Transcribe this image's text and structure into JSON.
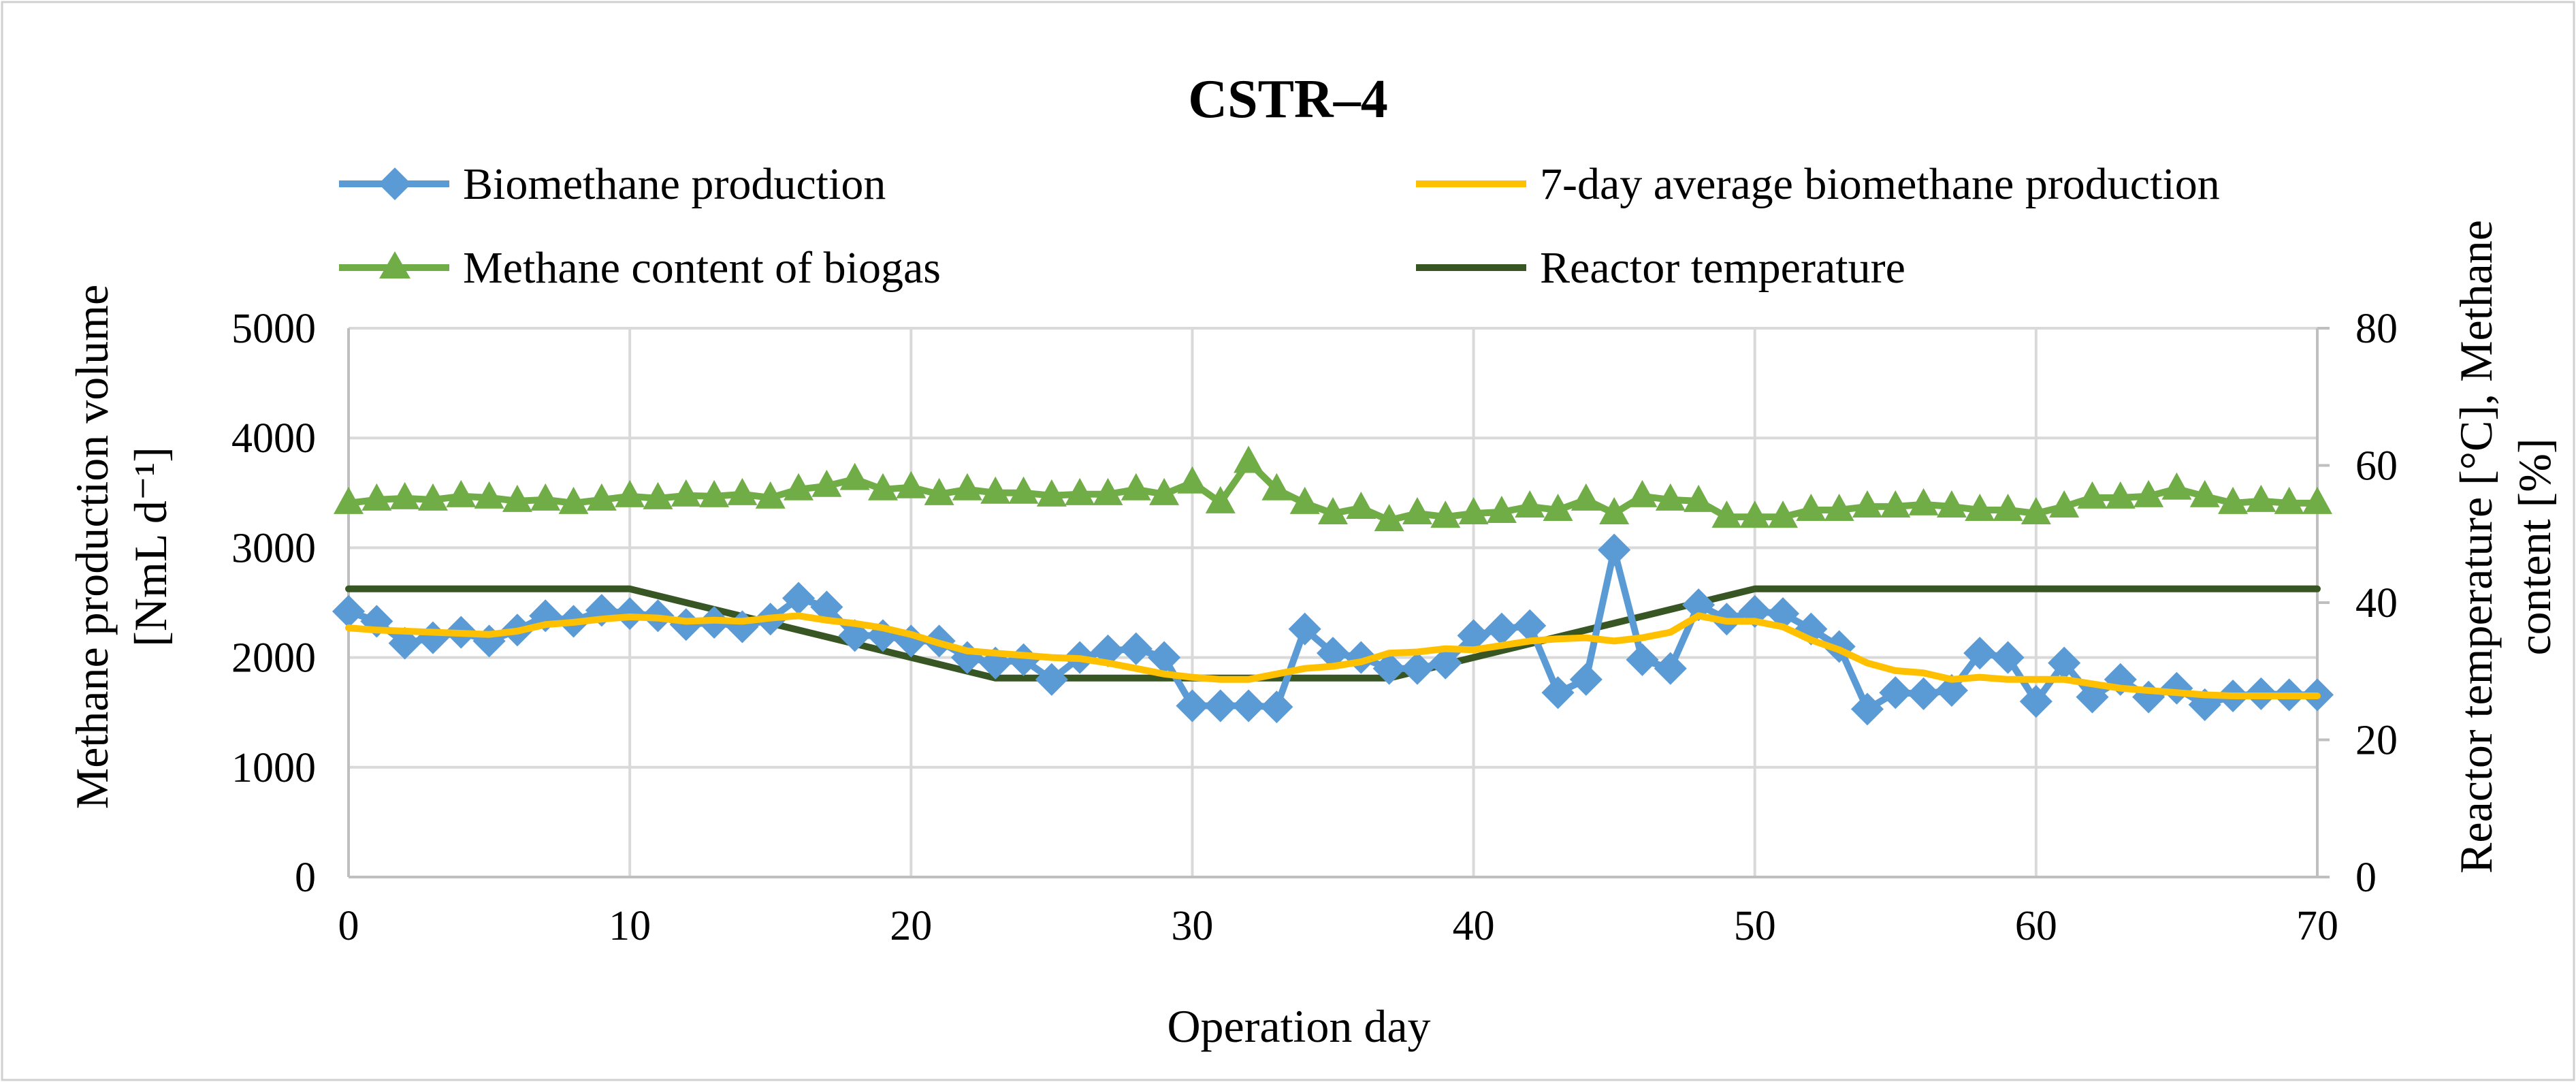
{
  "chart_data": {
    "type": "line",
    "title": "CSTR–4",
    "xlabel": "Operation day",
    "ylabel_left_line1": "Methane production volume",
    "ylabel_left_line2": "[NmL d⁻¹]",
    "ylabel_right_line1": "Reactor temperature [°C],  Methane",
    "ylabel_right_line2": "content [%]",
    "xlim": [
      0,
      70
    ],
    "ylim_left": [
      0,
      5000
    ],
    "ylim_right": [
      0,
      80
    ],
    "x_ticks": [
      "0",
      "10",
      "20",
      "30",
      "40",
      "50",
      "60",
      "70"
    ],
    "y_left_ticks": [
      "0",
      "1000",
      "2000",
      "3000",
      "4000",
      "5000"
    ],
    "y_right_ticks": [
      "0",
      "20",
      "40",
      "60",
      "80"
    ],
    "grid": true,
    "legend_position": "top",
    "series": [
      {
        "name": "Biomethane production",
        "axis": "left",
        "color": "#5b9bd5",
        "marker": "diamond",
        "x": [
          0,
          1,
          2,
          3,
          4,
          5,
          6,
          7,
          8,
          9,
          10,
          11,
          12,
          13,
          14,
          15,
          16,
          17,
          18,
          19,
          20,
          21,
          22,
          23,
          24,
          25,
          26,
          27,
          28,
          29,
          30,
          31,
          32,
          33,
          34,
          35,
          36,
          37,
          38,
          39,
          40,
          41,
          42,
          43,
          44,
          45,
          46,
          47,
          48,
          49,
          50,
          51,
          52,
          53,
          54,
          55,
          56,
          57,
          58,
          59,
          60,
          61,
          62,
          63,
          64,
          65,
          66,
          67,
          68,
          69,
          70
        ],
        "values": [
          2420,
          2330,
          2130,
          2180,
          2230,
          2150,
          2250,
          2380,
          2330,
          2430,
          2400,
          2380,
          2300,
          2320,
          2280,
          2350,
          2540,
          2460,
          2200,
          2200,
          2150,
          2150,
          2000,
          1950,
          1980,
          1800,
          2000,
          2060,
          2080,
          2000,
          1560,
          1560,
          1560,
          1550,
          2260,
          2040,
          2000,
          1900,
          1900,
          1950,
          2200,
          2260,
          2290,
          1680,
          1800,
          2980,
          1980,
          1900,
          2480,
          2350,
          2420,
          2400,
          2260,
          2100,
          1530,
          1680,
          1670,
          1700,
          2040,
          2000,
          1600,
          1950,
          1640,
          1800,
          1640,
          1720,
          1570,
          1650,
          1670,
          1660,
          1660
        ]
      },
      {
        "name": "7-day average biomethane production",
        "axis": "left",
        "color": "#ffc000",
        "marker": "none",
        "x": [
          0,
          1,
          2,
          3,
          4,
          5,
          6,
          7,
          8,
          9,
          10,
          11,
          12,
          13,
          14,
          15,
          16,
          17,
          18,
          19,
          20,
          21,
          22,
          23,
          24,
          25,
          26,
          27,
          28,
          29,
          30,
          31,
          32,
          33,
          34,
          35,
          36,
          37,
          38,
          39,
          40,
          41,
          42,
          43,
          44,
          45,
          46,
          47,
          48,
          49,
          50,
          51,
          52,
          53,
          54,
          55,
          56,
          57,
          58,
          59,
          60,
          61,
          62,
          63,
          64,
          65,
          66,
          67,
          68,
          69,
          70
        ],
        "values": [
          2270,
          2250,
          2240,
          2230,
          2220,
          2210,
          2240,
          2300,
          2320,
          2350,
          2370,
          2360,
          2330,
          2340,
          2330,
          2360,
          2380,
          2340,
          2310,
          2270,
          2210,
          2130,
          2060,
          2040,
          2020,
          2000,
          1990,
          1950,
          1900,
          1850,
          1820,
          1800,
          1800,
          1850,
          1900,
          1920,
          1960,
          2040,
          2050,
          2080,
          2070,
          2110,
          2150,
          2170,
          2180,
          2150,
          2180,
          2230,
          2380,
          2330,
          2330,
          2280,
          2160,
          2070,
          1950,
          1880,
          1860,
          1800,
          1820,
          1800,
          1800,
          1800,
          1760,
          1720,
          1700,
          1680,
          1660,
          1650,
          1650,
          1650,
          1650
        ]
      },
      {
        "name": "Methane content of biogas",
        "axis": "right",
        "color": "#70ad47",
        "marker": "triangle",
        "x": [
          0,
          1,
          2,
          3,
          4,
          5,
          6,
          7,
          8,
          9,
          10,
          11,
          12,
          13,
          14,
          15,
          16,
          17,
          18,
          19,
          20,
          21,
          22,
          23,
          24,
          25,
          26,
          27,
          28,
          29,
          30,
          31,
          32,
          33,
          34,
          35,
          36,
          37,
          38,
          39,
          40,
          41,
          42,
          43,
          44,
          45,
          46,
          47,
          48,
          49,
          50,
          51,
          52,
          53,
          54,
          55,
          56,
          57,
          58,
          59,
          60,
          61,
          62,
          63,
          64,
          65,
          66,
          67,
          68,
          69,
          70
        ],
        "values": [
          54.5,
          55,
          55.2,
          55,
          55.5,
          55.3,
          54.8,
          55,
          54.5,
          55,
          55.5,
          55.2,
          55.6,
          55.5,
          55.8,
          55.3,
          56.5,
          57,
          58,
          56.5,
          56.8,
          55.8,
          56.5,
          56,
          56,
          55.6,
          55.8,
          55.8,
          56.5,
          55.8,
          57.5,
          54.6,
          60.5,
          56.5,
          54.5,
          53,
          53.8,
          52,
          53,
          52.5,
          53,
          53.2,
          54,
          53.5,
          55,
          53,
          55.5,
          55,
          54.8,
          52.5,
          52.5,
          52.5,
          53.5,
          53.5,
          54,
          54,
          54.3,
          54,
          53.5,
          53.5,
          53,
          54,
          55.3,
          55.3,
          55.5,
          56.6,
          55.5,
          54.5,
          54.8,
          54.5,
          54.5
        ]
      },
      {
        "name": "Reactor temperature",
        "axis": "right",
        "color": "#375623",
        "marker": "none",
        "x": [
          0,
          10,
          23,
          37,
          50,
          70
        ],
        "values": [
          42,
          42,
          29,
          29,
          42,
          42
        ]
      }
    ]
  }
}
